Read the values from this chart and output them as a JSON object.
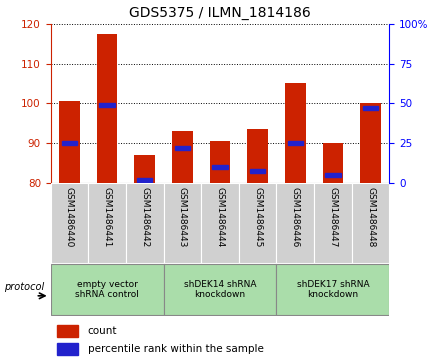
{
  "title": "GDS5375 / ILMN_1814186",
  "samples": [
    "GSM1486440",
    "GSM1486441",
    "GSM1486442",
    "GSM1486443",
    "GSM1486444",
    "GSM1486445",
    "GSM1486446",
    "GSM1486447",
    "GSM1486448"
  ],
  "counts": [
    100.5,
    117.5,
    87.0,
    93.0,
    90.5,
    93.5,
    105.0,
    90.0,
    100.0
  ],
  "percentiles": [
    25,
    49,
    2,
    22,
    10,
    8,
    25,
    5,
    47
  ],
  "ylim_left": [
    80,
    120
  ],
  "ylim_right": [
    0,
    100
  ],
  "yticks_left": [
    80,
    90,
    100,
    110,
    120
  ],
  "yticks_right": [
    0,
    25,
    50,
    75,
    100
  ],
  "bar_color": "#cc2200",
  "percentile_color": "#2222cc",
  "col_bg_color": "#d0d0d0",
  "groups": [
    {
      "label": "empty vector\nshRNA control",
      "span": [
        0,
        2
      ],
      "color": "#aaddaa"
    },
    {
      "label": "shDEK14 shRNA\nknockdown",
      "span": [
        3,
        5
      ],
      "color": "#aaddaa"
    },
    {
      "label": "shDEK17 shRNA\nknockdown",
      "span": [
        6,
        8
      ],
      "color": "#aaddaa"
    }
  ],
  "title_fontsize": 10,
  "tick_fontsize": 7.5,
  "legend_fontsize": 7.5
}
